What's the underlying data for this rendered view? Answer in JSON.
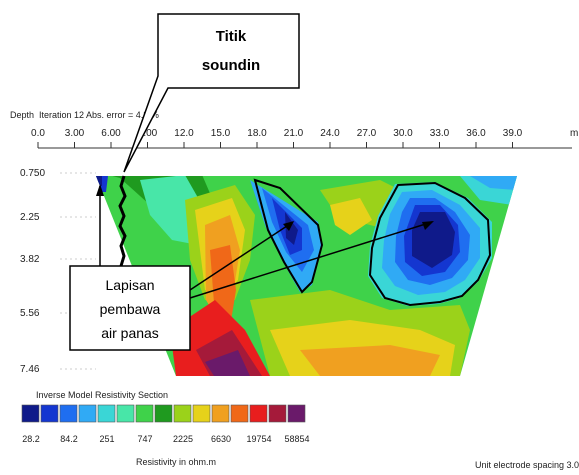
{
  "header": {
    "depth_label": "Depth",
    "iteration_text": "Iteration 12 Abs. error = 4.8 %",
    "x_unit": "m"
  },
  "chart_data": {
    "type": "heatmap",
    "title": "Inverse Model Resistivity Section",
    "xlabel": "m",
    "ylabel": "Depth",
    "x_ticks": [
      "0.0",
      "3.00",
      "6.00",
      "9.00",
      "12.0",
      "15.0",
      "18.0",
      "21.0",
      "24.0",
      "27.0",
      "30.0",
      "33.0",
      "36.0",
      "39.0"
    ],
    "y_ticks": [
      "0.750",
      "2.25",
      "3.82",
      "5.56",
      "7.46"
    ],
    "xlim": [
      0,
      45
    ],
    "ylim": [
      0,
      7.46
    ],
    "colorbar": {
      "label": "Resistivity in ohm.m",
      "labels": [
        "28.2",
        "84.2",
        "251",
        "747",
        "2225",
        "6630",
        "19754",
        "58854"
      ],
      "colors": [
        "#0f1a8a",
        "#1436d0",
        "#1f6ef0",
        "#30aaf5",
        "#3ad6d6",
        "#48e6a8",
        "#3fd24a",
        "#1f9a1f",
        "#9bd21a",
        "#e6d21a",
        "#f0a020",
        "#f06818",
        "#e81e1e",
        "#a51a3a",
        "#6a1a6a"
      ]
    }
  },
  "annotations": {
    "sounding_callout": "Titik soundin",
    "layer_callout": [
      "Lapisan",
      "pembawa",
      "air panas"
    ]
  },
  "footer": {
    "electrode_spacing": "Unit electrode spacing 3.00 m."
  }
}
